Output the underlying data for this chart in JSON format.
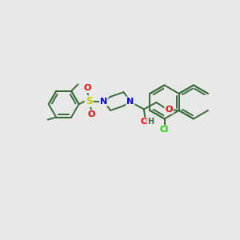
{
  "bg_color": "#e8e8e8",
  "bond_color": "#3a6b3a",
  "atom_colors": {
    "N": "#0000ee",
    "O": "#ee0000",
    "S": "#cccc00",
    "Cl": "#22cc00",
    "H": "#3a6b3a"
  },
  "bond_width": 1.4,
  "dbo": 0.07,
  "figsize": [
    3.0,
    3.0
  ],
  "dpi": 100
}
